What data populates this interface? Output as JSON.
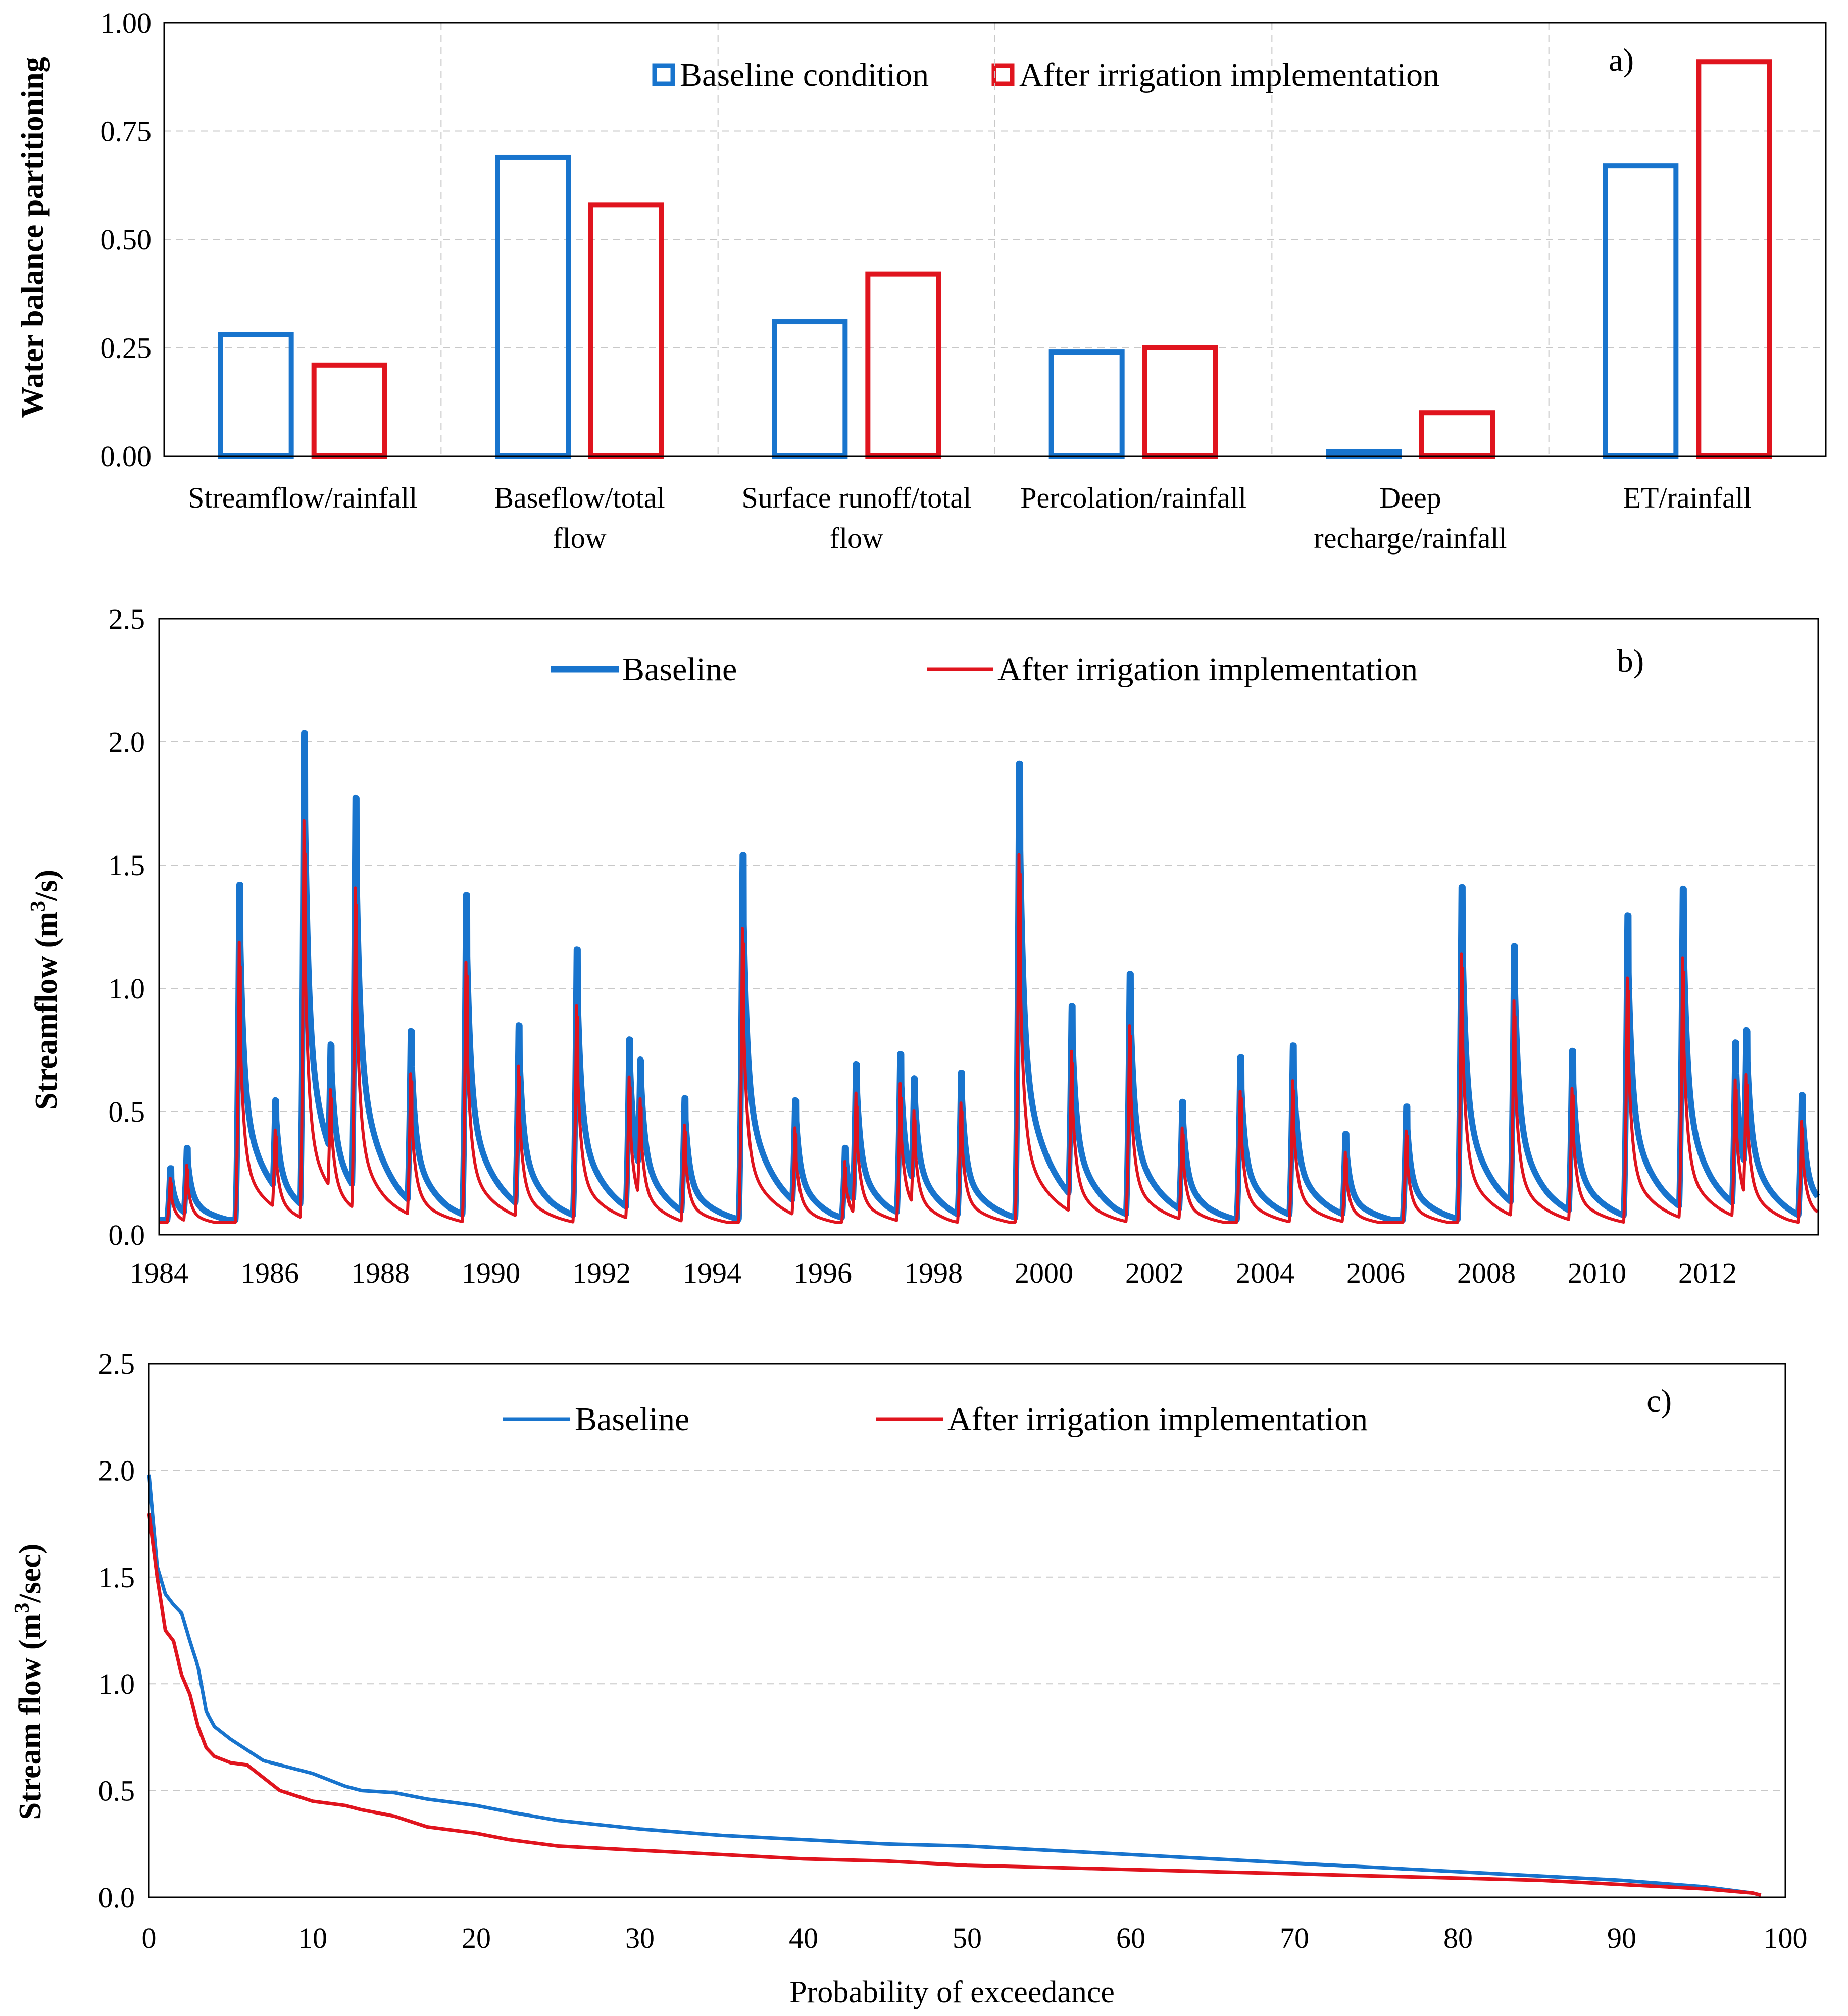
{
  "chart_data": [
    {
      "type": "bar",
      "panel_label": "a)",
      "title": "",
      "ylabel": "Water balance  partitioning",
      "xlabel": "",
      "ylim": [
        0,
        1
      ],
      "yticks": [
        "0.00",
        "0.25",
        "0.50",
        "0.75",
        "1.00"
      ],
      "grid": true,
      "legend_position": "top-center",
      "categories": [
        [
          "Streamflow/rainfall"
        ],
        [
          "Baseflow/total",
          "flow"
        ],
        [
          "Surface runoff/total",
          "flow"
        ],
        [
          "Percolation/rainfall"
        ],
        [
          "Deep",
          "recharge/rainfall"
        ],
        [
          "ET/rainfall"
        ]
      ],
      "series": [
        {
          "name": "Baseline condition",
          "color": "#1874cd",
          "values": [
            0.28,
            0.69,
            0.31,
            0.24,
            0.01,
            0.67
          ]
        },
        {
          "name": "After irrigation implementation",
          "color": "#e0141e",
          "values": [
            0.21,
            0.58,
            0.42,
            0.25,
            0.1,
            0.91
          ]
        }
      ]
    },
    {
      "type": "line",
      "panel_label": "b)",
      "title": "",
      "ylabel": "Streamflow  (m³/s)",
      "ylabel_parts": [
        "Streamflow  (m",
        "3",
        "/s)"
      ],
      "xlabel": "",
      "xlim": [
        1984,
        2014
      ],
      "ylim": [
        0,
        2.5
      ],
      "xticks": [
        "1984",
        "1986",
        "1988",
        "1990",
        "1992",
        "1994",
        "1996",
        "1998",
        "2000",
        "2002",
        "2004",
        "2006",
        "2008",
        "2010",
        "2012"
      ],
      "yticks": [
        "0.0",
        "0.5",
        "1.0",
        "1.5",
        "2.0",
        "2.5"
      ],
      "grid": true,
      "legend_position": "top-center",
      "base_flow": 0.06,
      "series": [
        {
          "name": "Baseline",
          "color": "#1874cd",
          "ratio": 1.0,
          "low_ratio": 1.0
        },
        {
          "name": "After irrigation implementation",
          "color": "#e0141e",
          "ratio": 0.9,
          "low_ratio": 0.62
        }
      ],
      "events": [
        [
          1984.2,
          0.24
        ],
        [
          1984.5,
          0.31
        ],
        [
          1985.45,
          1.39
        ],
        [
          1986.1,
          0.45
        ],
        [
          1986.62,
          1.98
        ],
        [
          1987.1,
          0.6
        ],
        [
          1987.55,
          1.68
        ],
        [
          1988.55,
          0.76
        ],
        [
          1989.55,
          1.34
        ],
        [
          1990.5,
          0.79
        ],
        [
          1991.55,
          1.12
        ],
        [
          1992.5,
          0.74
        ],
        [
          1992.7,
          0.58
        ],
        [
          1993.5,
          0.51
        ],
        [
          1994.55,
          1.51
        ],
        [
          1995.5,
          0.48
        ],
        [
          1996.4,
          0.32
        ],
        [
          1996.6,
          0.63
        ],
        [
          1997.4,
          0.69
        ],
        [
          1997.65,
          0.53
        ],
        [
          1998.5,
          0.62
        ],
        [
          1999.55,
          1.88
        ],
        [
          2000.5,
          0.85
        ],
        [
          2001.55,
          1.02
        ],
        [
          2002.5,
          0.49
        ],
        [
          2003.55,
          0.69
        ],
        [
          2004.5,
          0.73
        ],
        [
          2005.45,
          0.37
        ],
        [
          2006.55,
          0.49
        ],
        [
          2007.55,
          1.38
        ],
        [
          2008.5,
          1.11
        ],
        [
          2009.55,
          0.7
        ],
        [
          2010.55,
          1.26
        ],
        [
          2011.55,
          1.35
        ],
        [
          2012.5,
          0.72
        ],
        [
          2012.7,
          0.7
        ],
        [
          2013.7,
          0.53
        ]
      ]
    },
    {
      "type": "line",
      "panel_label": "c)",
      "title": "",
      "ylabel": "Stream flow  (m³/sec)",
      "ylabel_parts": [
        "Stream flow  (m",
        "3",
        "/sec)"
      ],
      "xlabel": "Probability  of exceedance",
      "xlim": [
        0,
        100
      ],
      "ylim": [
        0,
        2.5
      ],
      "xticks": [
        "0",
        "10",
        "20",
        "30",
        "40",
        "50",
        "60",
        "70",
        "80",
        "90",
        "100"
      ],
      "yticks": [
        "0.0",
        "0.5",
        "1.0",
        "1.5",
        "2.0",
        "2.5"
      ],
      "grid": true,
      "legend_position": "top-center",
      "series": [
        {
          "name": "Baseline",
          "color": "#1874cd",
          "x": [
            0,
            0.5,
            1,
            1.5,
            2,
            2.5,
            3,
            3.5,
            4,
            5,
            6,
            7,
            8,
            10,
            12,
            13,
            15,
            17,
            20,
            22,
            25,
            30,
            35,
            40,
            45,
            50,
            55,
            60,
            65,
            70,
            75,
            80,
            85,
            90,
            95,
            98,
            98.5
          ],
          "y": [
            1.98,
            1.55,
            1.42,
            1.37,
            1.33,
            1.2,
            1.08,
            0.87,
            0.8,
            0.74,
            0.69,
            0.64,
            0.62,
            0.58,
            0.52,
            0.5,
            0.49,
            0.46,
            0.43,
            0.4,
            0.36,
            0.32,
            0.29,
            0.27,
            0.25,
            0.24,
            0.22,
            0.2,
            0.18,
            0.16,
            0.14,
            0.12,
            0.1,
            0.08,
            0.05,
            0.02,
            0.01
          ]
        },
        {
          "name": "After irrigation implementation",
          "color": "#e0141e",
          "x": [
            0,
            0.5,
            1,
            1.5,
            2,
            2.5,
            3,
            3.5,
            4,
            5,
            6,
            7,
            8,
            10,
            12,
            13,
            15,
            17,
            20,
            22,
            25,
            30,
            35,
            40,
            45,
            50,
            55,
            60,
            65,
            70,
            75,
            80,
            85,
            90,
            95,
            98,
            98.5
          ],
          "y": [
            1.8,
            1.5,
            1.25,
            1.2,
            1.04,
            0.95,
            0.8,
            0.7,
            0.66,
            0.63,
            0.62,
            0.56,
            0.5,
            0.45,
            0.43,
            0.41,
            0.38,
            0.33,
            0.3,
            0.27,
            0.24,
            0.22,
            0.2,
            0.18,
            0.17,
            0.15,
            0.14,
            0.13,
            0.12,
            0.11,
            0.1,
            0.09,
            0.08,
            0.06,
            0.04,
            0.02,
            0.01
          ]
        }
      ]
    }
  ]
}
